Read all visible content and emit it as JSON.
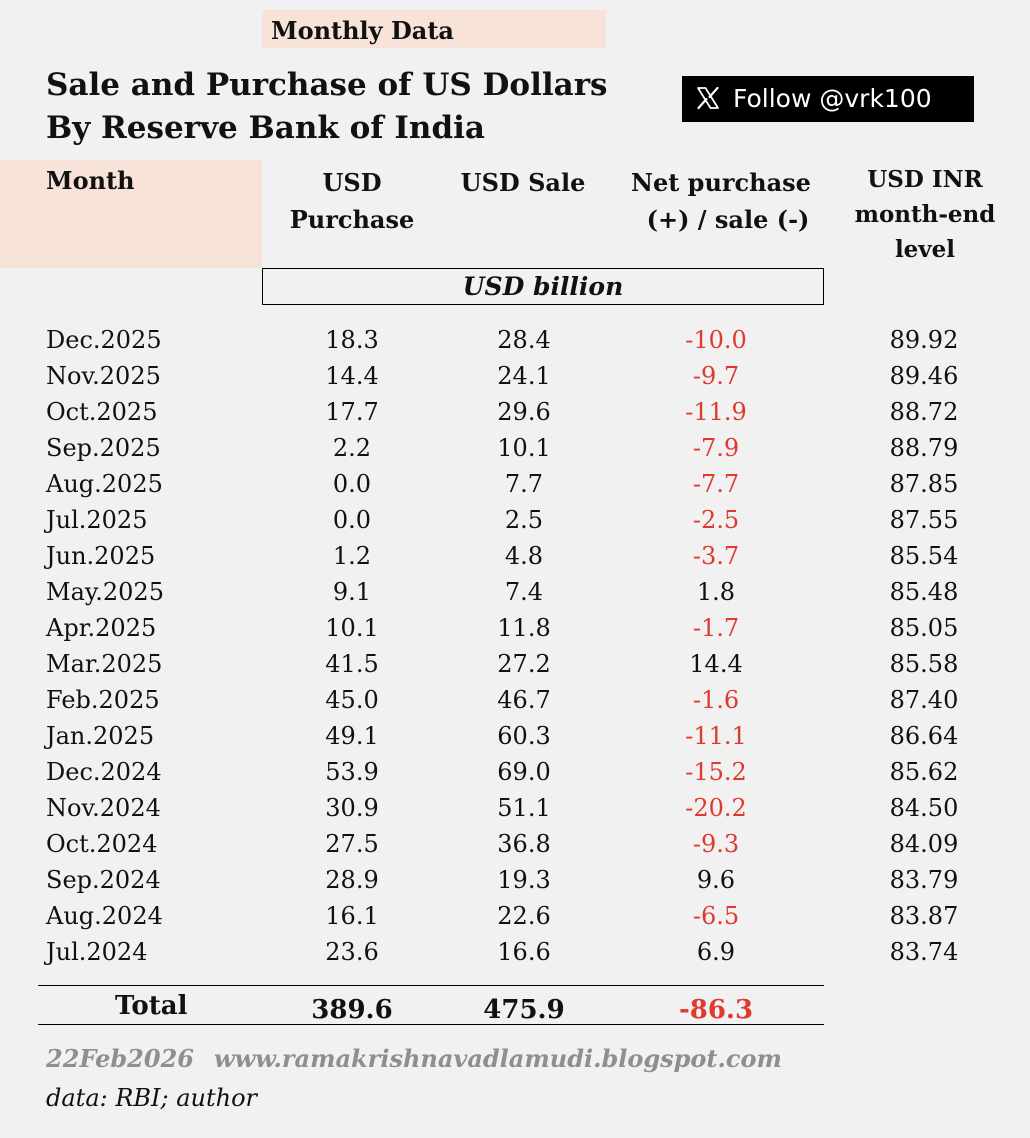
{
  "tag": "Monthly Data",
  "title": {
    "line1": "Sale and Purchase of US Dollars",
    "line2": "By Reserve Bank of India"
  },
  "follow_badge": {
    "icon": "x-logo-icon",
    "label": "Follow @vrk100"
  },
  "header": {
    "month": "Month",
    "purchase_line1": "USD",
    "purchase_line2": "Purchase",
    "sale": "USD Sale",
    "net_line1": "Net purchase",
    "net_line2": "(+) / sale (-)",
    "inr_line1": "USD INR",
    "inr_line2": "month-end",
    "inr_line3": "level",
    "unit": "USD billion"
  },
  "colors": {
    "accent_bg": "#f8e3d9",
    "negative": "#e0392e",
    "footer_gray": "#8f8f8f"
  },
  "rows": [
    {
      "month": "Dec.2025",
      "purchase": "18.3",
      "sale": "28.4",
      "net": "-10.0",
      "inr": "89.92"
    },
    {
      "month": "Nov.2025",
      "purchase": "14.4",
      "sale": "24.1",
      "net": "-9.7",
      "inr": "89.46"
    },
    {
      "month": "Oct.2025",
      "purchase": "17.7",
      "sale": "29.6",
      "net": "-11.9",
      "inr": "88.72"
    },
    {
      "month": "Sep.2025",
      "purchase": "2.2",
      "sale": "10.1",
      "net": "-7.9",
      "inr": "88.79"
    },
    {
      "month": "Aug.2025",
      "purchase": "0.0",
      "sale": "7.7",
      "net": "-7.7",
      "inr": "87.85"
    },
    {
      "month": "Jul.2025",
      "purchase": "0.0",
      "sale": "2.5",
      "net": "-2.5",
      "inr": "87.55"
    },
    {
      "month": "Jun.2025",
      "purchase": "1.2",
      "sale": "4.8",
      "net": "-3.7",
      "inr": "85.54"
    },
    {
      "month": "May.2025",
      "purchase": "9.1",
      "sale": "7.4",
      "net": "1.8",
      "inr": "85.48"
    },
    {
      "month": "Apr.2025",
      "purchase": "10.1",
      "sale": "11.8",
      "net": "-1.7",
      "inr": "85.05"
    },
    {
      "month": "Mar.2025",
      "purchase": "41.5",
      "sale": "27.2",
      "net": "14.4",
      "inr": "85.58"
    },
    {
      "month": "Feb.2025",
      "purchase": "45.0",
      "sale": "46.7",
      "net": "-1.6",
      "inr": "87.40"
    },
    {
      "month": "Jan.2025",
      "purchase": "49.1",
      "sale": "60.3",
      "net": "-11.1",
      "inr": "86.64"
    },
    {
      "month": "Dec.2024",
      "purchase": "53.9",
      "sale": "69.0",
      "net": "-15.2",
      "inr": "85.62"
    },
    {
      "month": "Nov.2024",
      "purchase": "30.9",
      "sale": "51.1",
      "net": "-20.2",
      "inr": "84.50"
    },
    {
      "month": "Oct.2024",
      "purchase": "27.5",
      "sale": "36.8",
      "net": "-9.3",
      "inr": "84.09"
    },
    {
      "month": "Sep.2024",
      "purchase": "28.9",
      "sale": "19.3",
      "net": "9.6",
      "inr": "83.79"
    },
    {
      "month": "Aug.2024",
      "purchase": "16.1",
      "sale": "22.6",
      "net": "-6.5",
      "inr": "83.87"
    },
    {
      "month": "Jul.2024",
      "purchase": "23.6",
      "sale": "16.6",
      "net": "6.9",
      "inr": "83.74"
    }
  ],
  "total": {
    "label": "Total",
    "purchase": "389.6",
    "sale": "475.9",
    "net": "-86.3"
  },
  "footer": {
    "date": "22Feb2026",
    "url": "www.ramakrishnavadlamudi.blogspot.com",
    "source": "data: RBI; author"
  }
}
